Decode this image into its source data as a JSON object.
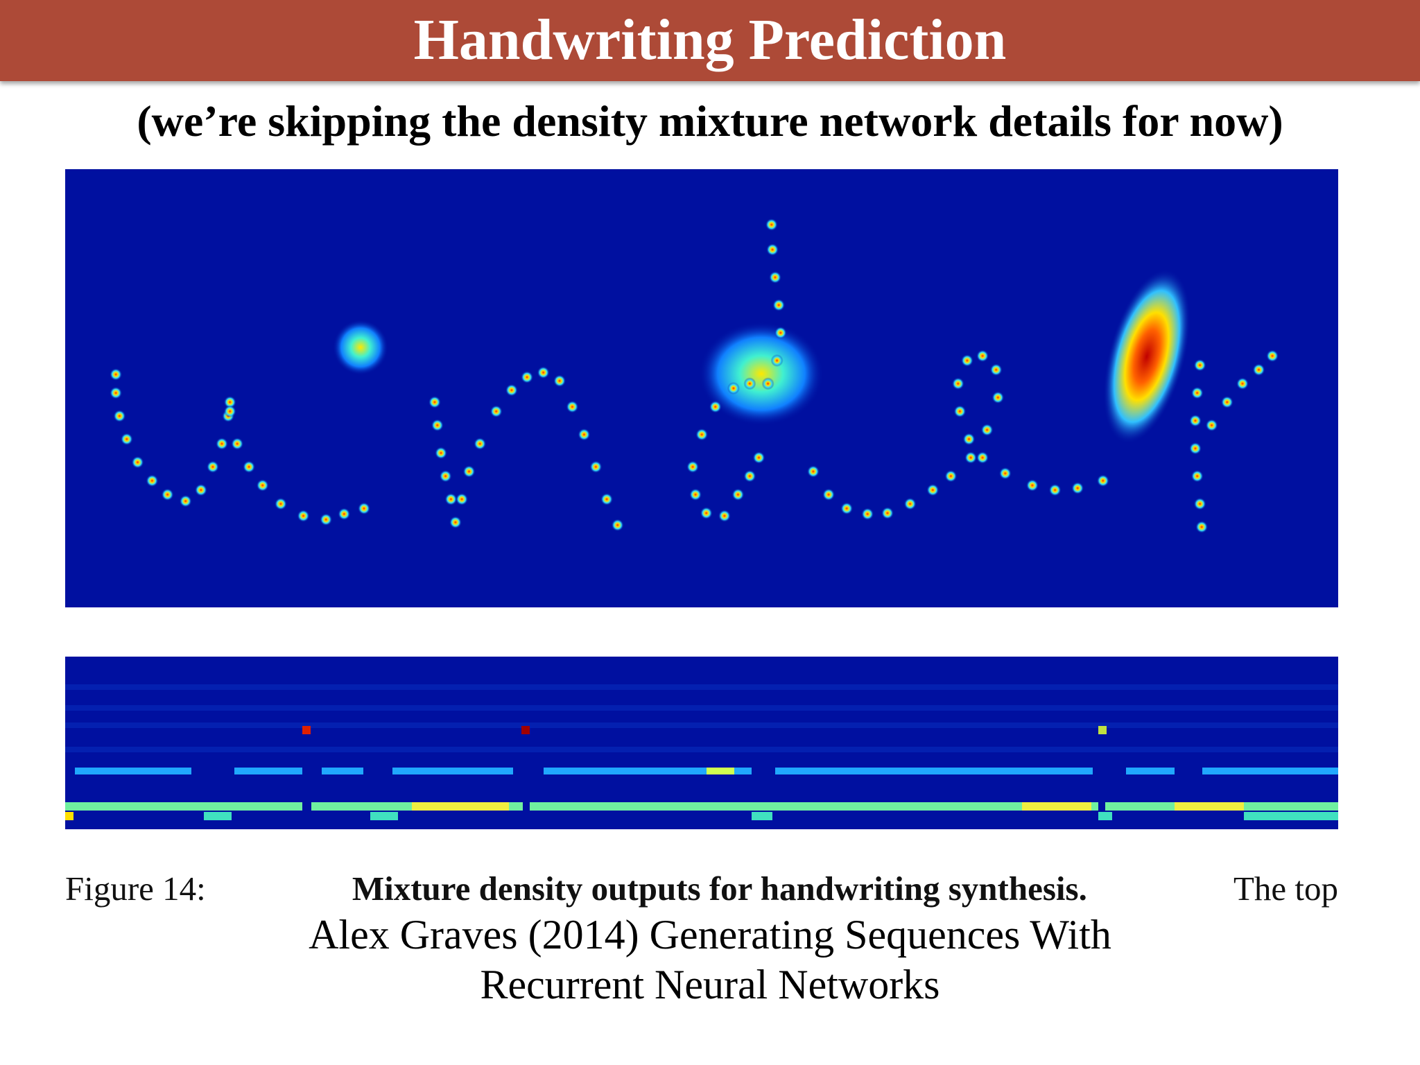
{
  "header": {
    "title": "Handwriting Prediction"
  },
  "subtitle": "(we’re skipping the density mixture network details for now)",
  "figure": {
    "caption": {
      "label": "Figure 14:",
      "bold": "Mixture density outputs for handwriting synthesis.",
      "text": "The top"
    }
  },
  "citation": {
    "lines": [
      "Alex Graves (2014) Generating Sequences With",
      "Recurrent Neural Networks"
    ]
  }
}
